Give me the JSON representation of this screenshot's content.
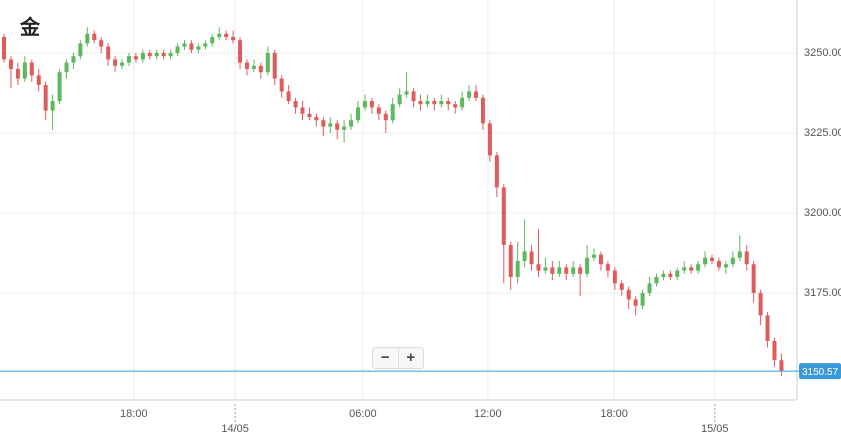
{
  "title": "金",
  "controls": [
    "−",
    "+"
  ],
  "chart_data": {
    "type": "candlestick",
    "up_color": "#5cb85c",
    "down_color": "#e05c5c",
    "price_line_color": "#3a9ad9",
    "grid": true,
    "ylim": [
      3141.56,
      3266.56
    ],
    "yticks": [
      {
        "value": 3175,
        "label": "3175.00"
      },
      {
        "value": 3200,
        "label": "3200.00"
      },
      {
        "value": 3225,
        "label": "3225.00"
      },
      {
        "value": 3250,
        "label": "3250.00"
      }
    ],
    "xlim": [
      -0.58,
      114.1
    ],
    "xticks": [
      {
        "value": 18.7,
        "label": "18:00"
      },
      {
        "value": 51.7,
        "label": "06:00"
      },
      {
        "value": 69.7,
        "label": "12:00"
      },
      {
        "value": 87.9,
        "label": "18:00"
      }
    ],
    "date_ticks": [
      {
        "value": 33.3,
        "label": "14/05"
      },
      {
        "value": 102.4,
        "label": "15/05"
      }
    ],
    "current_price": 3150.57,
    "candles": [
      [
        3255,
        3256,
        3247,
        3248
      ],
      [
        3248,
        3249,
        3239,
        3245
      ],
      [
        3245,
        3247,
        3240,
        3242
      ],
      [
        3242,
        3249,
        3241,
        3247
      ],
      [
        3247,
        3248,
        3241,
        3243
      ],
      [
        3243,
        3245,
        3238,
        3240
      ],
      [
        3240,
        3241,
        3229,
        3232
      ],
      [
        3232,
        3237,
        3226,
        3235
      ],
      [
        3235,
        3245,
        3234,
        3244
      ],
      [
        3244,
        3248,
        3242,
        3247
      ],
      [
        3247,
        3250,
        3245,
        3249
      ],
      [
        3249,
        3254,
        3248,
        3253
      ],
      [
        3253,
        3258,
        3252,
        3256
      ],
      [
        3256,
        3257,
        3253,
        3254
      ],
      [
        3254,
        3255,
        3250,
        3252
      ],
      [
        3252,
        3253,
        3246,
        3248
      ],
      [
        3248,
        3249,
        3244,
        3246
      ],
      [
        3246,
        3248,
        3245,
        3247
      ],
      [
        3247,
        3250,
        3246,
        3249
      ],
      [
        3249,
        3250,
        3247,
        3248
      ],
      [
        3248,
        3251,
        3247,
        3250
      ],
      [
        3250,
        3251,
        3248,
        3249
      ],
      [
        3249,
        3251,
        3248,
        3250
      ],
      [
        3250,
        3251,
        3248,
        3249
      ],
      [
        3249,
        3251,
        3248,
        3250
      ],
      [
        3250,
        3253,
        3249,
        3252
      ],
      [
        3252,
        3254,
        3251,
        3253
      ],
      [
        3253,
        3254,
        3250,
        3251
      ],
      [
        3251,
        3253,
        3250,
        3252
      ],
      [
        3252,
        3254,
        3251,
        3253
      ],
      [
        3253,
        3256,
        3252,
        3255
      ],
      [
        3255,
        3258,
        3254,
        3256
      ],
      [
        3256,
        3257,
        3254,
        3255
      ],
      [
        3255,
        3257,
        3253,
        3254
      ],
      [
        3254,
        3255,
        3245,
        3247
      ],
      [
        3247,
        3248,
        3243,
        3245
      ],
      [
        3245,
        3248,
        3244,
        3246
      ],
      [
        3246,
        3247,
        3242,
        3244
      ],
      [
        3244,
        3252,
        3243,
        3250
      ],
      [
        3250,
        3251,
        3240,
        3242
      ],
      [
        3242,
        3243,
        3236,
        3238
      ],
      [
        3238,
        3240,
        3234,
        3235
      ],
      [
        3235,
        3236,
        3231,
        3233
      ],
      [
        3233,
        3235,
        3229,
        3231
      ],
      [
        3231,
        3233,
        3229,
        3230
      ],
      [
        3230,
        3231,
        3227,
        3229
      ],
      [
        3229,
        3230,
        3224,
        3227
      ],
      [
        3227,
        3230,
        3225,
        3228
      ],
      [
        3228,
        3229,
        3223,
        3226
      ],
      [
        3226,
        3229,
        3222,
        3227
      ],
      [
        3227,
        3231,
        3226,
        3229
      ],
      [
        3229,
        3235,
        3228,
        3233
      ],
      [
        3233,
        3237,
        3232,
        3235
      ],
      [
        3235,
        3236,
        3231,
        3233
      ],
      [
        3233,
        3234,
        3229,
        3231
      ],
      [
        3231,
        3232,
        3225,
        3229
      ],
      [
        3229,
        3236,
        3228,
        3234
      ],
      [
        3234,
        3239,
        3233,
        3237
      ],
      [
        3237,
        3244,
        3236,
        3238
      ],
      [
        3238,
        3239,
        3233,
        3235
      ],
      [
        3235,
        3237,
        3232,
        3234
      ],
      [
        3234,
        3237,
        3233,
        3235
      ],
      [
        3235,
        3236,
        3232,
        3234
      ],
      [
        3234,
        3237,
        3233,
        3235
      ],
      [
        3235,
        3236,
        3232,
        3234
      ],
      [
        3234,
        3235,
        3231,
        3233
      ],
      [
        3233,
        3238,
        3232,
        3236
      ],
      [
        3236,
        3240,
        3235,
        3238
      ],
      [
        3238,
        3240,
        3235,
        3236
      ],
      [
        3236,
        3237,
        3226,
        3228
      ],
      [
        3228,
        3229,
        3216,
        3218
      ],
      [
        3218,
        3219,
        3205,
        3208
      ],
      [
        3208,
        3209,
        3178,
        3190
      ],
      [
        3190,
        3191,
        3176,
        3180
      ],
      [
        3180,
        3191,
        3178,
        3185
      ],
      [
        3185,
        3198,
        3183,
        3188
      ],
      [
        3188,
        3190,
        3182,
        3184
      ],
      [
        3184,
        3195,
        3180,
        3182
      ],
      [
        3182,
        3186,
        3181,
        3183
      ],
      [
        3183,
        3185,
        3179,
        3181
      ],
      [
        3181,
        3185,
        3180,
        3183
      ],
      [
        3183,
        3184,
        3179,
        3181
      ],
      [
        3181,
        3185,
        3180,
        3183
      ],
      [
        3183,
        3184,
        3174,
        3181
      ],
      [
        3181,
        3190,
        3180,
        3186
      ],
      [
        3186,
        3189,
        3185,
        3187
      ],
      [
        3187,
        3188,
        3182,
        3184
      ],
      [
        3184,
        3185,
        3180,
        3182
      ],
      [
        3182,
        3183,
        3176,
        3178
      ],
      [
        3178,
        3179,
        3174,
        3176
      ],
      [
        3176,
        3177,
        3170,
        3173
      ],
      [
        3173,
        3174,
        3168,
        3171
      ],
      [
        3171,
        3176,
        3170,
        3175
      ],
      [
        3175,
        3180,
        3174,
        3178
      ],
      [
        3178,
        3181,
        3177,
        3180
      ],
      [
        3180,
        3182,
        3179,
        3181
      ],
      [
        3181,
        3182,
        3179,
        3180
      ],
      [
        3180,
        3183,
        3179,
        3182
      ],
      [
        3182,
        3185,
        3181,
        3183
      ],
      [
        3183,
        3184,
        3181,
        3182
      ],
      [
        3182,
        3185,
        3181,
        3184
      ],
      [
        3184,
        3188,
        3183,
        3186
      ],
      [
        3186,
        3187,
        3184,
        3185
      ],
      [
        3185,
        3186,
        3182,
        3183
      ],
      [
        3183,
        3185,
        3181,
        3184
      ],
      [
        3184,
        3188,
        3183,
        3186
      ],
      [
        3186,
        3193,
        3185,
        3188
      ],
      [
        3188,
        3190,
        3182,
        3184
      ],
      [
        3184,
        3185,
        3172,
        3175
      ],
      [
        3175,
        3176,
        3165,
        3168
      ],
      [
        3168,
        3169,
        3158,
        3160
      ],
      [
        3160,
        3161,
        3152,
        3154
      ],
      [
        3154,
        3156,
        3149,
        3150.57
      ]
    ]
  }
}
